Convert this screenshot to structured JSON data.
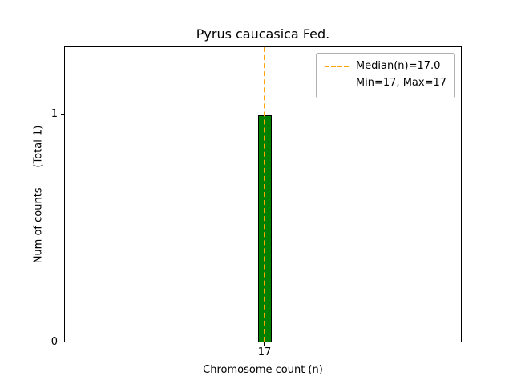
{
  "chart_data": {
    "type": "bar",
    "title": "Pyrus caucasica Fed.",
    "xlabel": "Chromosome count (n)",
    "ylabel": "Num of counts      (Total 1)",
    "categories": [
      "17"
    ],
    "values": [
      1
    ],
    "total": 1,
    "ylim": [
      0,
      1.3
    ],
    "ytick_labels": [
      "0",
      "1"
    ],
    "median": 17.0,
    "min": 17,
    "max": 17,
    "legend_labels": [
      "Median(n)=17.0",
      "Min=17, Max=17"
    ],
    "legend_position": "upper right",
    "grid": false,
    "colors": {
      "bar_fill": "#008000",
      "bar_edge": "#000000",
      "median_line": "#FFA500",
      "axis": "#000000",
      "background": "#ffffff"
    }
  }
}
